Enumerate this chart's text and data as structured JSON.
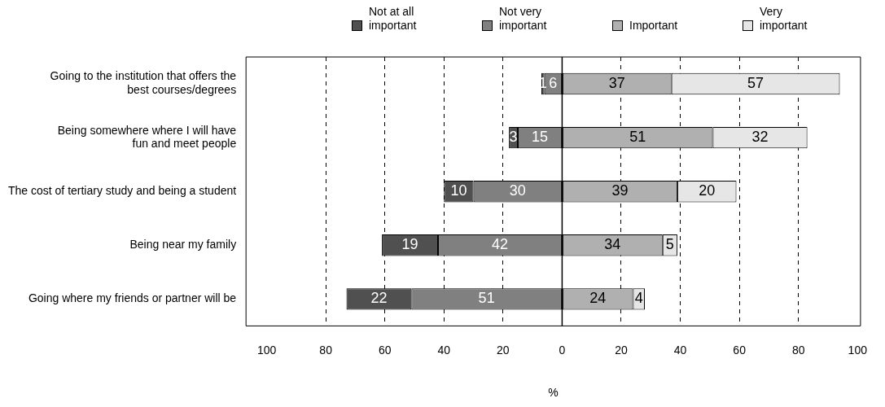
{
  "chart_data": {
    "type": "bar",
    "orientation": "horizontal",
    "xlabel": "%",
    "categories": [
      "Going to the institution that offers the\nbest courses/degrees",
      "Being somewhere where I will have\nfun and meet people",
      "The cost of tertiary study and being a student",
      "Being near my family",
      "Going where my friends or partner will be"
    ],
    "series": [
      {
        "name": "Not at all important",
        "color": "#505050",
        "values": [
          1,
          3,
          10,
          19,
          22
        ],
        "base": [
          -7,
          -18,
          -40,
          -61,
          -73
        ]
      },
      {
        "name": "Not very important",
        "color": "#808080",
        "values": [
          6,
          15,
          30,
          42,
          51
        ],
        "base": [
          -6,
          -15,
          -30,
          -42,
          -51
        ]
      },
      {
        "name": "Important",
        "color": "#b0b0b0",
        "values": [
          37,
          51,
          39,
          34,
          24
        ],
        "base": [
          0,
          0,
          0,
          0,
          0
        ]
      },
      {
        "name": "Very important",
        "color": "#e6e6e6",
        "values": [
          57,
          32,
          20,
          5,
          4
        ],
        "base": [
          37,
          51,
          39,
          34,
          24
        ]
      }
    ],
    "xlim": [
      -107,
      101
    ],
    "xticks": [
      {
        "value": -100,
        "label": "100"
      },
      {
        "value": -80,
        "label": "80"
      },
      {
        "value": -60,
        "label": "60"
      },
      {
        "value": -40,
        "label": "40"
      },
      {
        "value": -20,
        "label": "20"
      },
      0,
      20,
      40,
      60,
      80,
      100
    ],
    "ref_lines": [
      {
        "axis": "x",
        "value": 0,
        "line_style": "solid"
      }
    ],
    "grid": "x",
    "data_labels": true,
    "legend": "top"
  }
}
